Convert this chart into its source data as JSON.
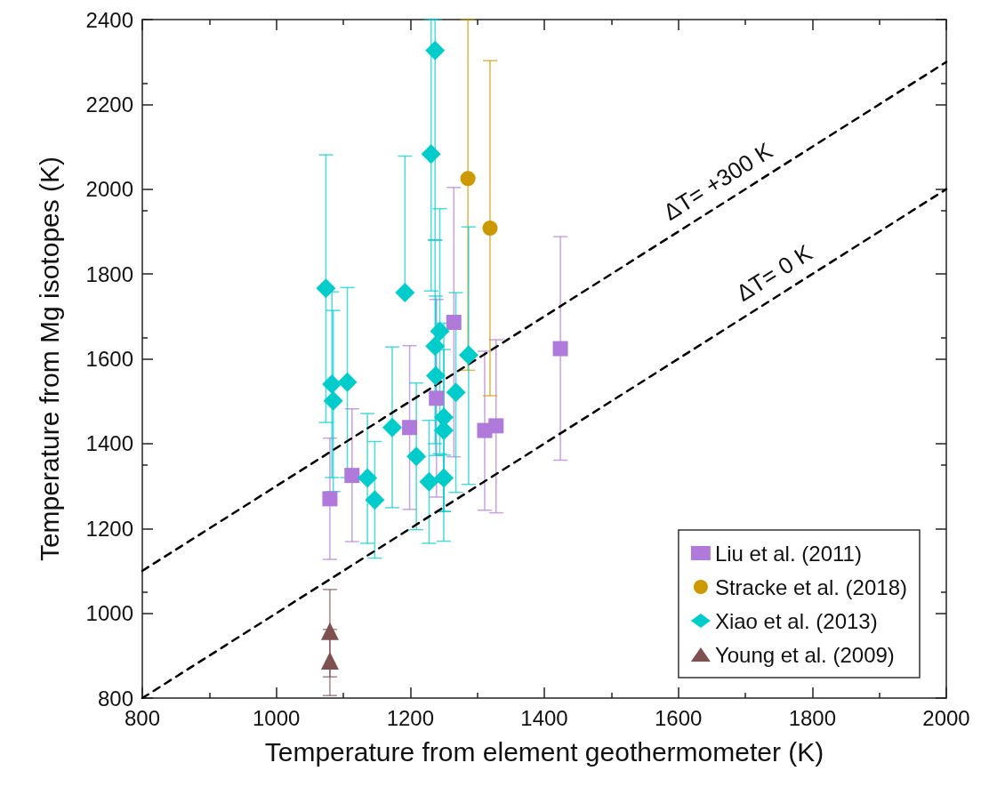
{
  "chart_data": {
    "type": "scatter",
    "xlabel": "Temperature from element geothermometer (K)",
    "ylabel": "Temperature from Mg isotopes (K)",
    "xlim": [
      800,
      2000
    ],
    "xticks": [
      800,
      1000,
      1200,
      1400,
      1600,
      1800,
      2000
    ],
    "ylim": [
      800,
      2400
    ],
    "yticks": [
      800,
      1000,
      1200,
      1400,
      1600,
      1800,
      2000,
      2200,
      2400
    ],
    "grid": false,
    "legend": "bottom right",
    "series": [
      {
        "name": "Liu et al. (2011)",
        "color": "#b07ada",
        "marker": "square",
        "x": [
          1080,
          1113,
          1199,
          1239,
          1265,
          1311,
          1328,
          1424
        ],
        "values": [
          1270,
          1325,
          1438,
          1507,
          1686,
          1431,
          1442,
          1624
        ],
        "errors": [
          [
            1127,
            1413
          ],
          [
            1169,
            1482
          ],
          [
            1245,
            1631
          ],
          [
            1274,
            1740
          ],
          [
            1369,
            2004
          ],
          [
            1243,
            1618
          ],
          [
            1237,
            1645
          ],
          [
            1361,
            1888
          ]
        ]
      },
      {
        "name": "Stracke et al. (2018)",
        "color": "#cc9900",
        "marker": "circle",
        "x": [
          1286,
          1319
        ],
        "values": [
          2025,
          1908
        ],
        "errors": [
          [
            1573,
            2400
          ],
          [
            1513,
            2303
          ]
        ]
      },
      {
        "name": "Xiao et al. (2013)",
        "color": "#00cccc",
        "marker": "diamond",
        "x": [
          1074,
          1083,
          1085,
          1106,
          1136,
          1147,
          1173,
          1192,
          1209,
          1228,
          1231,
          1237,
          1237,
          1238,
          1244,
          1250,
          1250,
          1250,
          1268,
          1287
        ],
        "values": [
          1766,
          1540,
          1501,
          1545,
          1319,
          1267,
          1438,
          1756,
          1370,
          1310,
          2083,
          2327,
          1630,
          1560,
          1665,
          1319,
          1462,
          1431,
          1521,
          1609
        ],
        "errors": [
          [
            1450,
            2081
          ],
          [
            1320,
            1758
          ],
          [
            1287,
            1714
          ],
          [
            1320,
            1768
          ],
          [
            1165,
            1471
          ],
          [
            1130,
            1405
          ],
          [
            1249,
            1628
          ],
          [
            1756,
            2078
          ],
          [
            1197,
            1543
          ],
          [
            1165,
            1455
          ],
          [
            1760,
            2400
          ],
          [
            1880,
            2400
          ],
          [
            1400,
            1880
          ],
          [
            1372,
            1748
          ],
          [
            1376,
            1954
          ],
          [
            1170,
            1373
          ],
          [
            1240,
            1684
          ],
          [
            1240,
            1622
          ],
          [
            1285,
            1756
          ],
          [
            1304,
            1911
          ]
        ]
      },
      {
        "name": "Young et al. (2009)",
        "color": "#7f5050",
        "marker": "triangle",
        "x": [
          1080,
          1080
        ],
        "values": [
          958,
          888
        ],
        "errors": [
          [
            850,
            1056
          ],
          [
            806,
            962
          ]
        ]
      },
      {
        "type": "line",
        "color": "#000000",
        "line_style": "dashed",
        "marker": "none",
        "x": [
          800,
          2000
        ],
        "values": [
          1100,
          2300
        ]
      },
      {
        "type": "line",
        "color": "#000000",
        "line_style": "dashed",
        "marker": "none",
        "x": [
          800,
          2000
        ],
        "values": [
          800,
          2000
        ]
      }
    ],
    "annotations": [
      "ΔT= +300 K",
      "ΔT= 0 K"
    ]
  }
}
